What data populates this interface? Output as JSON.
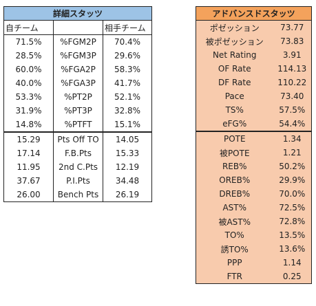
{
  "detail": {
    "title": "詳細スタッツ",
    "col_left": "自チーム",
    "col_mid": "",
    "col_right": "相手チーム",
    "rows_shooting": [
      {
        "own": "71.5%",
        "label": "%FGM2P",
        "opp": "70.4%"
      },
      {
        "own": "28.5%",
        "label": "%FGM3P",
        "opp": "29.6%"
      },
      {
        "own": "60.0%",
        "label": "%FGA2P",
        "opp": "58.3%"
      },
      {
        "own": "40.0%",
        "label": "%FGA3P",
        "opp": "41.7%"
      },
      {
        "own": "53.3%",
        "label": "%PT2P",
        "opp": "52.1%"
      },
      {
        "own": "31.9%",
        "label": "%PT3P",
        "opp": "32.8%"
      },
      {
        "own": "14.8%",
        "label": "%PTFT",
        "opp": "15.1%"
      }
    ],
    "rows_points": [
      {
        "own": "15.29",
        "label": "Pts Off TO",
        "opp": "14.05"
      },
      {
        "own": "17.14",
        "label": "F.B.Pts",
        "opp": "15.33"
      },
      {
        "own": "11.95",
        "label": "2nd C.Pts",
        "opp": "12.19"
      },
      {
        "own": "37.67",
        "label": "P.I.Pts",
        "opp": "34.48"
      },
      {
        "own": "26.00",
        "label": "Bench Pts",
        "opp": "26.19"
      }
    ]
  },
  "advanced": {
    "title": "アドバンスドスタッツ",
    "rows_pace": [
      {
        "label": "ポゼッション",
        "value": "73.77"
      },
      {
        "label": "被ポゼッション",
        "value": "73.83"
      },
      {
        "label": "Net Rating",
        "value": "3.91"
      },
      {
        "label": "OF Rate",
        "value": "114.13"
      },
      {
        "label": "DF Rate",
        "value": "110.22"
      },
      {
        "label": "Pace",
        "value": "73.40"
      },
      {
        "label": "TS%",
        "value": "57.5%"
      },
      {
        "label": "eFG%",
        "value": "54.4%"
      }
    ],
    "rows_misc": [
      {
        "label": "POTE",
        "value": "1.34"
      },
      {
        "label": "被POTE",
        "value": "1.21"
      },
      {
        "label": "REB%",
        "value": "50.2%"
      },
      {
        "label": "OREB%",
        "value": "29.9%"
      },
      {
        "label": "DREB%",
        "value": "70.0%"
      },
      {
        "label": "AST%",
        "value": "72.5%"
      },
      {
        "label": "被AST%",
        "value": "72.8%"
      },
      {
        "label": "TO%",
        "value": "13.5%"
      },
      {
        "label": "誘TO%",
        "value": "13.6%"
      },
      {
        "label": "PPP",
        "value": "1.14"
      },
      {
        "label": "FTR",
        "value": "0.25"
      }
    ]
  },
  "colors": {
    "detail_header": "#9dc3e6",
    "advanced_header": "#f4a25c",
    "advanced_fill": "#f8cbad"
  }
}
